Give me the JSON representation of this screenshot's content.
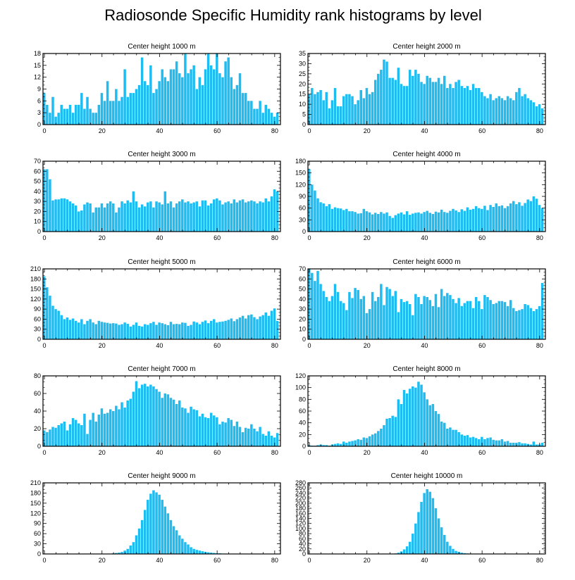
{
  "figure_title": "Radiosonde Specific Humidity rank histograms by level",
  "bar_color": "#1ebcf1",
  "chart_data": [
    {
      "type": "bar",
      "title": "Center height 1000 m",
      "x": "ranks 0-81",
      "xticks": [
        0,
        20,
        40,
        60,
        80
      ],
      "xlim": [
        -0.5,
        82
      ],
      "ylim": [
        0,
        18
      ],
      "yticks": [
        0,
        3,
        6,
        9,
        12,
        15,
        18
      ],
      "values": [
        8,
        5,
        3,
        7,
        2,
        3,
        5,
        4,
        4,
        5,
        3,
        5,
        5,
        8,
        4,
        7,
        4,
        3,
        3,
        5,
        8,
        6,
        11,
        6,
        6,
        9,
        6,
        7,
        14,
        7,
        8,
        8,
        9,
        10,
        17,
        11,
        10,
        15,
        8,
        9,
        11,
        14,
        12,
        11,
        14,
        14,
        16,
        13,
        12,
        18,
        13,
        14,
        15,
        9,
        12,
        10,
        14,
        18,
        15,
        14,
        18,
        13,
        12,
        16,
        17,
        12,
        9,
        10,
        13,
        8,
        8,
        6,
        6,
        4,
        4,
        6,
        3,
        5,
        4,
        3,
        2,
        3
      ]
    },
    {
      "type": "bar",
      "title": "Center height 2000 m",
      "xticks": [
        0,
        20,
        40,
        60,
        80
      ],
      "xlim": [
        -0.5,
        82
      ],
      "ylim": [
        0,
        35
      ],
      "yticks": [
        0,
        5,
        10,
        15,
        20,
        25,
        30,
        35
      ],
      "values": [
        15,
        18,
        15,
        16,
        17,
        12,
        16,
        8,
        12,
        18,
        9,
        9,
        14,
        15,
        15,
        14,
        10,
        12,
        17,
        13,
        18,
        15,
        16,
        22,
        25,
        27,
        32,
        31,
        23,
        23,
        22,
        28,
        20,
        19,
        19,
        27,
        24,
        27,
        25,
        21,
        20,
        24,
        23,
        21,
        21,
        23,
        20,
        24,
        18,
        20,
        18,
        21,
        22,
        19,
        18,
        19,
        17,
        20,
        18,
        18,
        16,
        14,
        13,
        15,
        12,
        13,
        14,
        13,
        12,
        14,
        13,
        12,
        16,
        18,
        14,
        15,
        13,
        12,
        11,
        9,
        10,
        8
      ]
    },
    {
      "type": "bar",
      "title": "Center height 3000 m",
      "xticks": [
        0,
        20,
        40,
        60,
        80
      ],
      "xlim": [
        -0.5,
        82
      ],
      "ylim": [
        0,
        70
      ],
      "yticks": [
        0,
        10,
        20,
        30,
        40,
        50,
        60,
        70
      ],
      "values": [
        62,
        62,
        52,
        31,
        32,
        32,
        33,
        33,
        32,
        30,
        28,
        26,
        20,
        21,
        27,
        29,
        28,
        19,
        24,
        24,
        28,
        24,
        28,
        30,
        28,
        19,
        24,
        30,
        28,
        31,
        29,
        40,
        30,
        24,
        27,
        25,
        29,
        30,
        24,
        30,
        29,
        27,
        40,
        28,
        30,
        24,
        28,
        30,
        32,
        29,
        30,
        28,
        29,
        30,
        25,
        31,
        31,
        26,
        28,
        32,
        33,
        31,
        27,
        29,
        30,
        28,
        32,
        29,
        31,
        32,
        29,
        30,
        31,
        30,
        28,
        30,
        29,
        33,
        30,
        35,
        42,
        40
      ]
    },
    {
      "type": "bar",
      "title": "Center height 4000 m",
      "xticks": [
        0,
        20,
        40,
        60,
        80
      ],
      "xlim": [
        -0.5,
        82
      ],
      "ylim": [
        0,
        180
      ],
      "yticks": [
        0,
        30,
        60,
        90,
        120,
        150,
        180
      ],
      "values": [
        160,
        120,
        105,
        85,
        75,
        72,
        65,
        70,
        58,
        62,
        60,
        59,
        55,
        58,
        52,
        52,
        50,
        46,
        47,
        58,
        52,
        49,
        44,
        48,
        45,
        50,
        46,
        49,
        40,
        35,
        42,
        46,
        49,
        44,
        52,
        43,
        46,
        48,
        49,
        46,
        50,
        53,
        48,
        45,
        51,
        49,
        56,
        50,
        48,
        53,
        58,
        54,
        50,
        57,
        53,
        62,
        56,
        58,
        65,
        60,
        58,
        66,
        55,
        68,
        63,
        72,
        65,
        67,
        60,
        65,
        72,
        78,
        70,
        75,
        66,
        73,
        82,
        78,
        90,
        84,
        68,
        60
      ]
    },
    {
      "type": "bar",
      "title": "Center height 5000 m",
      "xticks": [
        0,
        20,
        40,
        60,
        80
      ],
      "xlim": [
        -0.5,
        82
      ],
      "ylim": [
        0,
        210
      ],
      "yticks": [
        0,
        30,
        60,
        90,
        120,
        150,
        180,
        210
      ],
      "values": [
        188,
        155,
        130,
        100,
        90,
        85,
        72,
        60,
        65,
        58,
        62,
        55,
        50,
        60,
        45,
        55,
        60,
        50,
        45,
        55,
        52,
        50,
        49,
        47,
        48,
        47,
        43,
        45,
        50,
        46,
        38,
        43,
        50,
        40,
        38,
        45,
        43,
        48,
        52,
        43,
        50,
        48,
        45,
        42,
        52,
        45,
        46,
        45,
        50,
        49,
        40,
        43,
        53,
        50,
        45,
        52,
        56,
        48,
        55,
        60,
        50,
        52,
        53,
        55,
        58,
        62,
        54,
        60,
        65,
        70,
        62,
        72,
        74,
        66,
        60,
        68,
        72,
        80,
        70,
        85,
        92,
        55
      ]
    },
    {
      "type": "bar",
      "title": "Center height 6000 m",
      "xticks": [
        0,
        20,
        40,
        60,
        80
      ],
      "xlim": [
        -0.5,
        82
      ],
      "ylim": [
        0,
        70
      ],
      "yticks": [
        0,
        10,
        20,
        30,
        40,
        50,
        60,
        70
      ],
      "values": [
        70,
        66,
        58,
        68,
        55,
        48,
        42,
        38,
        43,
        55,
        47,
        38,
        36,
        29,
        47,
        41,
        51,
        49,
        40,
        43,
        26,
        30,
        47,
        38,
        42,
        55,
        34,
        52,
        50,
        43,
        48,
        27,
        40,
        37,
        38,
        35,
        24,
        45,
        42,
        35,
        43,
        42,
        39,
        33,
        45,
        32,
        50,
        43,
        46,
        44,
        40,
        36,
        41,
        33,
        36,
        38,
        38,
        31,
        42,
        38,
        30,
        44,
        42,
        39,
        35,
        36,
        38,
        38,
        37,
        33,
        39,
        31,
        28,
        29,
        30,
        35,
        34,
        31,
        28,
        30,
        33,
        56
      ]
    },
    {
      "type": "bar",
      "title": "Center height 7000 m",
      "xticks": [
        0,
        20,
        40,
        60,
        80
      ],
      "xlim": [
        -0.5,
        82
      ],
      "ylim": [
        0,
        80
      ],
      "yticks": [
        0,
        20,
        40,
        60,
        80
      ],
      "values": [
        18,
        16,
        19,
        22,
        21,
        24,
        26,
        28,
        18,
        25,
        32,
        30,
        26,
        24,
        37,
        14,
        30,
        38,
        28,
        36,
        43,
        37,
        38,
        42,
        40,
        46,
        42,
        50,
        44,
        52,
        54,
        62,
        74,
        66,
        70,
        71,
        68,
        70,
        68,
        65,
        62,
        55,
        60,
        59,
        55,
        53,
        48,
        52,
        44,
        43,
        38,
        45,
        42,
        41,
        34,
        37,
        33,
        32,
        38,
        35,
        33,
        25,
        28,
        27,
        32,
        30,
        23,
        28,
        22,
        16,
        21,
        20,
        25,
        20,
        17,
        22,
        14,
        12,
        17,
        12,
        10,
        15
      ]
    },
    {
      "type": "bar",
      "title": "Center height 8000 m",
      "xticks": [
        0,
        20,
        40,
        60,
        80
      ],
      "xlim": [
        -0.5,
        82
      ],
      "ylim": [
        0,
        120
      ],
      "yticks": [
        0,
        20,
        40,
        60,
        80,
        100,
        120
      ],
      "values": [
        2,
        1,
        1,
        2,
        3,
        2,
        2,
        1,
        3,
        4,
        5,
        4,
        8,
        6,
        8,
        9,
        10,
        12,
        11,
        15,
        14,
        17,
        20,
        22,
        26,
        30,
        36,
        47,
        48,
        52,
        50,
        80,
        72,
        96,
        90,
        98,
        102,
        100,
        110,
        105,
        92,
        80,
        70,
        72,
        60,
        55,
        42,
        40,
        30,
        32,
        28,
        28,
        24,
        20,
        18,
        19,
        15,
        16,
        14,
        12,
        16,
        12,
        14,
        15,
        11,
        10,
        10,
        12,
        8,
        9,
        6,
        6,
        6,
        7,
        5,
        5,
        4,
        3,
        8,
        3,
        3,
        6
      ]
    },
    {
      "type": "bar",
      "title": "Center height 9000 m",
      "xticks": [
        0,
        20,
        40,
        60,
        80
      ],
      "xlim": [
        -0.5,
        82
      ],
      "ylim": [
        0,
        210
      ],
      "yticks": [
        0,
        30,
        60,
        90,
        120,
        150,
        180,
        210
      ],
      "values": [
        0,
        0,
        0,
        0,
        0,
        0,
        0,
        0,
        0,
        0,
        0,
        0,
        0,
        0,
        0,
        0,
        0,
        0,
        0,
        0,
        1,
        1,
        1,
        1,
        2,
        3,
        4,
        6,
        10,
        15,
        25,
        35,
        55,
        75,
        100,
        130,
        160,
        178,
        188,
        182,
        175,
        160,
        140,
        120,
        100,
        82,
        70,
        55,
        45,
        35,
        28,
        20,
        15,
        12,
        10,
        8,
        6,
        5,
        4,
        3,
        2,
        2,
        1,
        1,
        1,
        1,
        0,
        0,
        0,
        0,
        0,
        0,
        0,
        0,
        0,
        0,
        0,
        0,
        0,
        0,
        0,
        0
      ]
    },
    {
      "type": "bar",
      "title": "Center height 10000 m",
      "xticks": [
        0,
        20,
        40,
        60,
        80
      ],
      "xlim": [
        -0.5,
        82
      ],
      "ylim": [
        0,
        280
      ],
      "yticks": [
        0,
        20,
        40,
        60,
        80,
        100,
        120,
        140,
        160,
        180,
        200,
        220,
        240,
        260,
        280
      ],
      "values": [
        0,
        0,
        0,
        0,
        0,
        0,
        0,
        0,
        0,
        0,
        0,
        0,
        0,
        0,
        0,
        0,
        0,
        0,
        0,
        0,
        0,
        0,
        0,
        0,
        0,
        0,
        0,
        0,
        0,
        1,
        2,
        5,
        10,
        18,
        30,
        48,
        80,
        120,
        165,
        205,
        240,
        255,
        245,
        220,
        180,
        140,
        105,
        75,
        48,
        32,
        20,
        12,
        8,
        5,
        3,
        2,
        1,
        1,
        1,
        0,
        0,
        0,
        0,
        0,
        0,
        0,
        0,
        0,
        0,
        0,
        0,
        0,
        0,
        0,
        0,
        0,
        0,
        0,
        0,
        0,
        0,
        0
      ]
    }
  ]
}
